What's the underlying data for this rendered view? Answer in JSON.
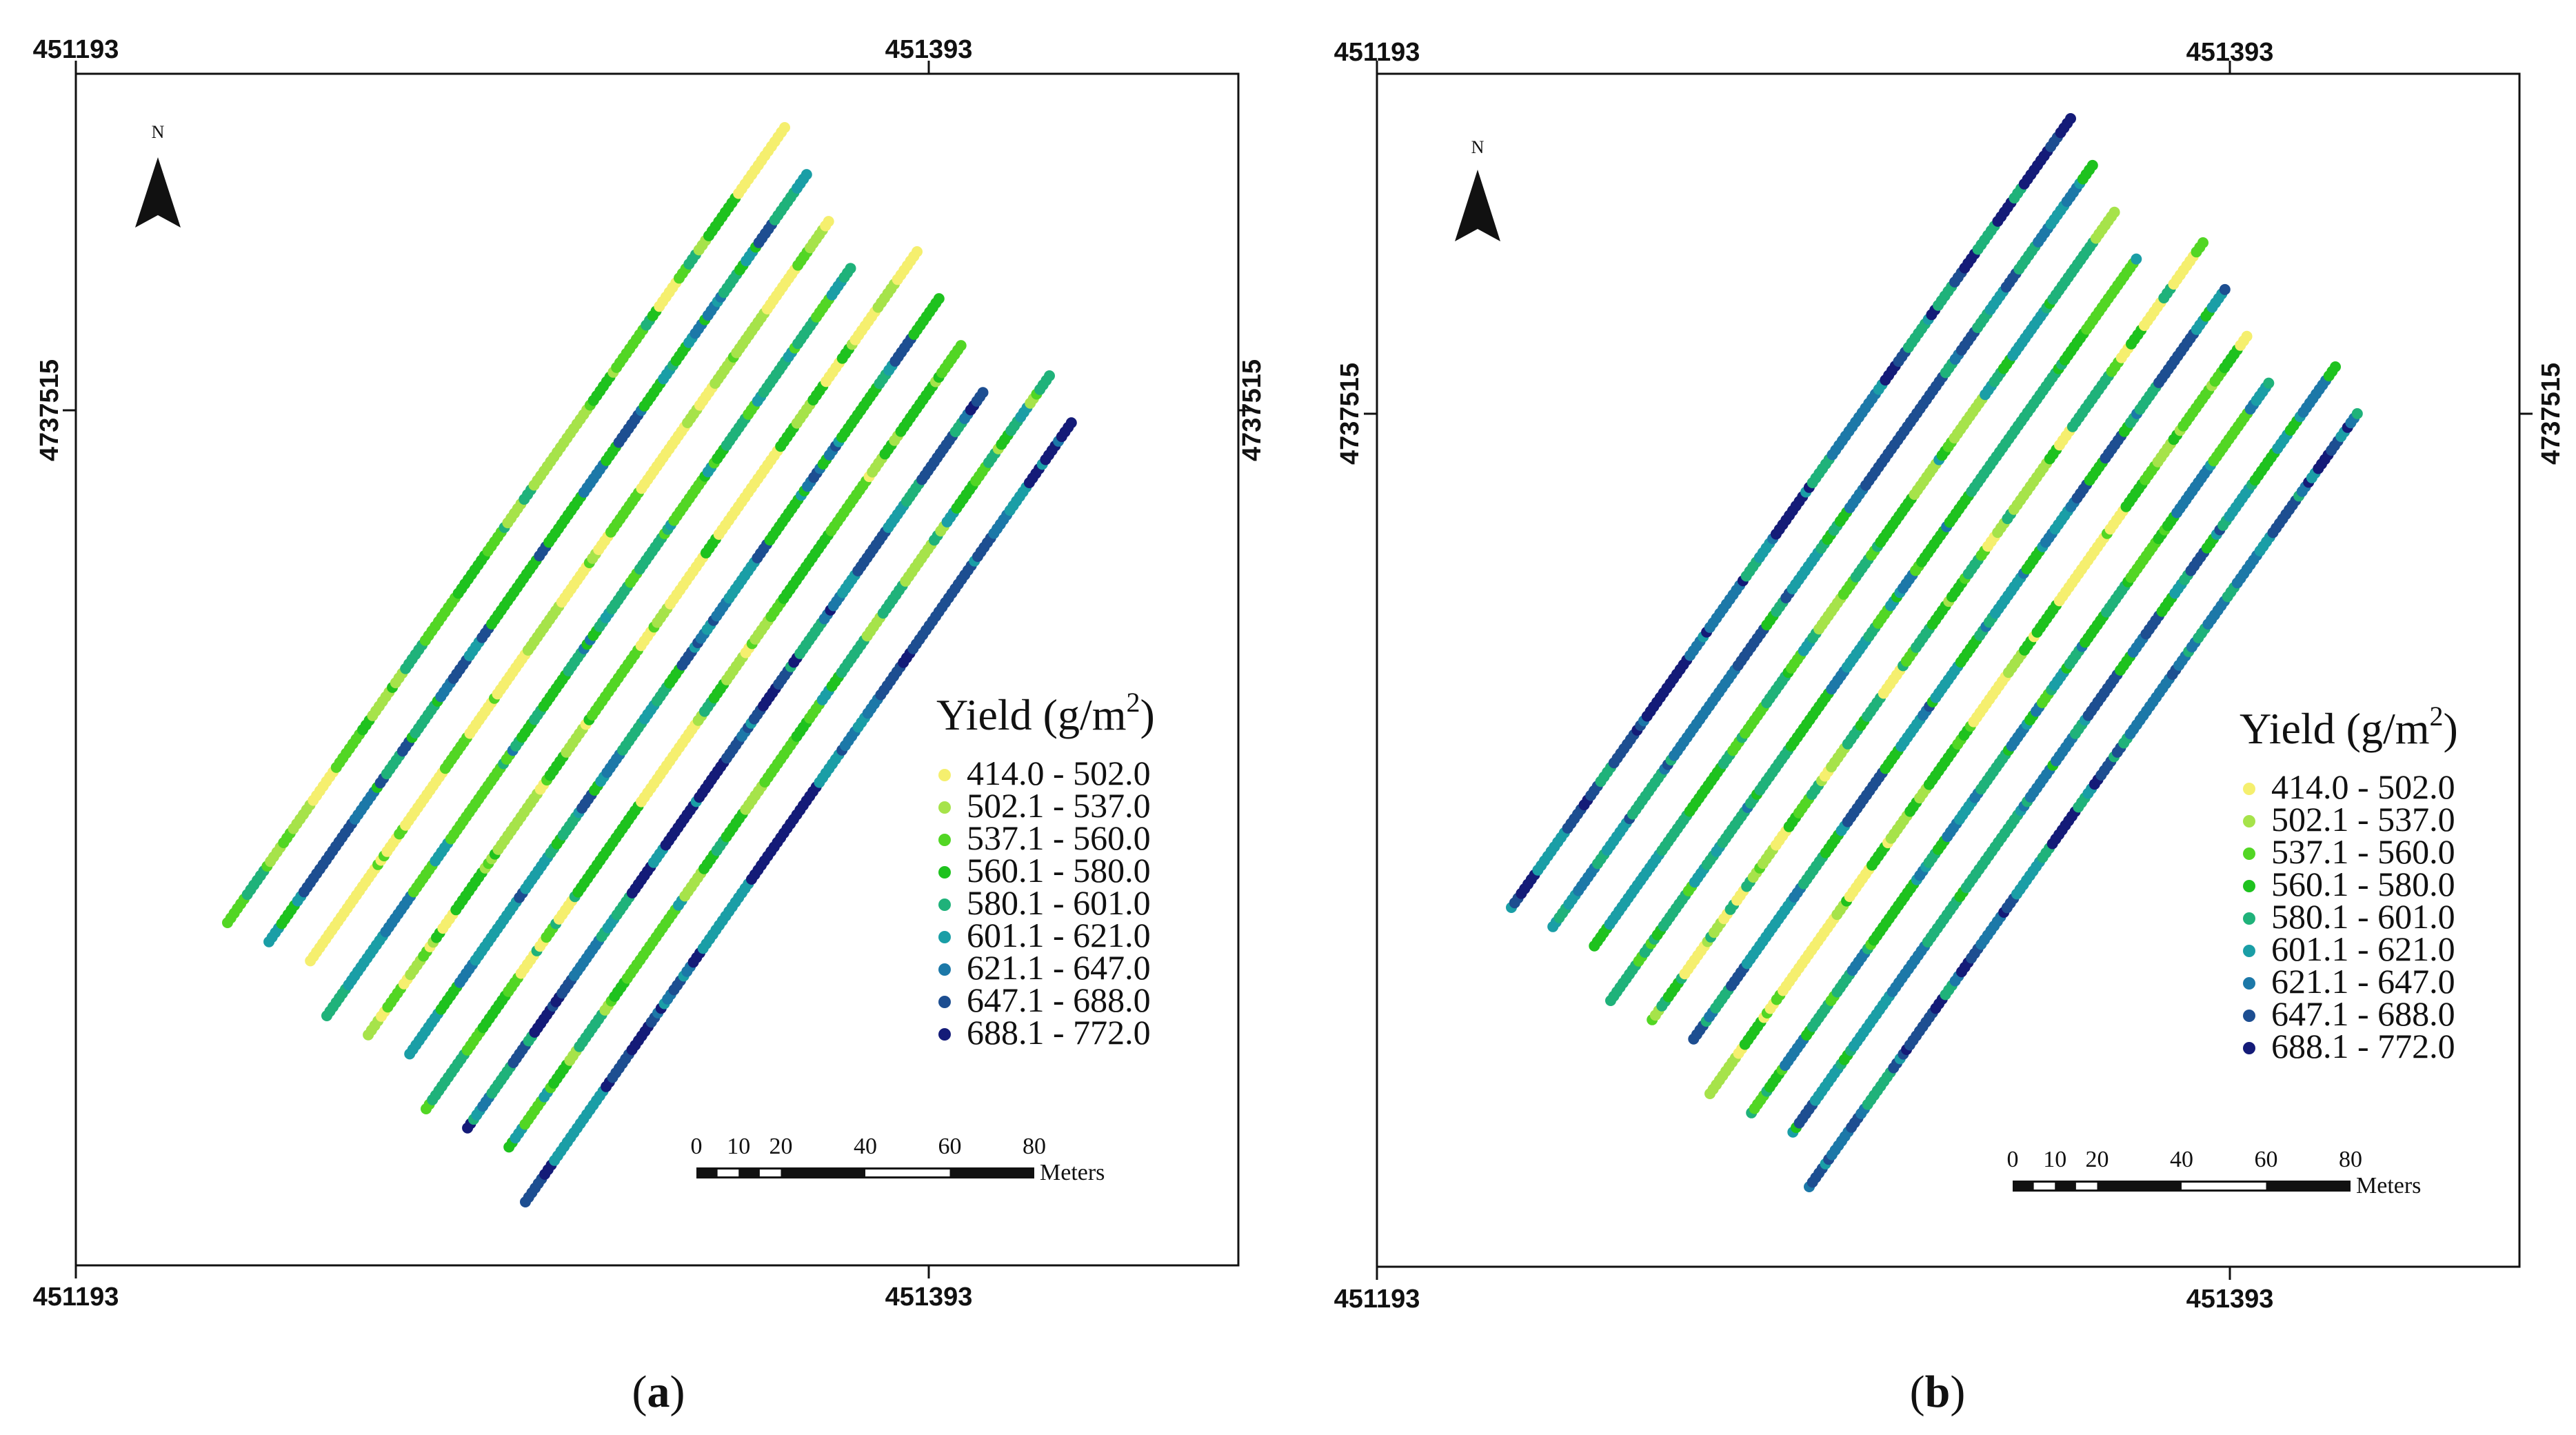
{
  "legend": {
    "title": "Yield (g/m",
    "title_sup": "2",
    "title_close": ")",
    "classes": [
      {
        "label": "414.0 - 502.0",
        "color": "#f5ef6e"
      },
      {
        "label": "502.1 - 537.0",
        "color": "#a6e34a"
      },
      {
        "label": "537.1 - 560.0",
        "color": "#52d624"
      },
      {
        "label": "560.1 - 580.0",
        "color": "#1ec21e"
      },
      {
        "label": "580.1 - 601.0",
        "color": "#1fb27a"
      },
      {
        "label": "601.1 - 621.0",
        "color": "#1a9ea6"
      },
      {
        "label": "621.1 - 647.0",
        "color": "#1c78a8"
      },
      {
        "label": "647.1 - 688.0",
        "color": "#1d4e91"
      },
      {
        "label": "688.1 - 772.0",
        "color": "#141b78"
      }
    ]
  },
  "scale_bar": {
    "ticks": [
      "0",
      "10",
      "20",
      "40",
      "60",
      "80"
    ],
    "tick_values": [
      0,
      10,
      20,
      40,
      60,
      80
    ],
    "unit": "Meters"
  },
  "north_arrow": {
    "label": "N"
  },
  "coordinates": {
    "x_left": "451193",
    "x_mid": "451393",
    "y_mid": "4737515"
  },
  "panels": [
    {
      "label": "a",
      "stripe_bias": [
        2,
        5,
        0,
        4,
        1,
        5,
        2,
        6,
        3,
        7
      ]
    },
    {
      "label": "b",
      "stripe_bias": [
        6,
        5,
        3,
        4,
        2,
        5,
        1,
        4,
        5,
        6
      ]
    }
  ]
}
